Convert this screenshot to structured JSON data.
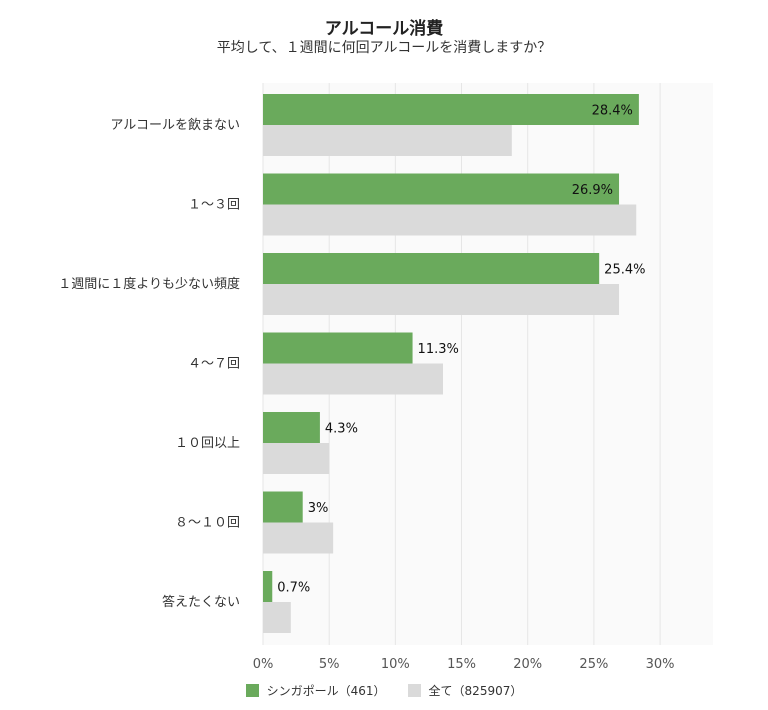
{
  "chart_data": {
    "type": "bar",
    "orientation": "horizontal",
    "title": "アルコール消費",
    "subtitle": "平均して、１週間に何回アルコールを消費しますか？",
    "categories": [
      "アルコールを飲まない",
      "１～３回",
      "１週間に１度よりも少ない頻度",
      "４～７回",
      "１０回以上",
      "８～１０回",
      "答えたくない"
    ],
    "series": [
      {
        "name": "シンガポール（461）",
        "color": "#6aaa5c",
        "values": [
          28.4,
          26.9,
          25.4,
          11.3,
          4.3,
          3,
          0.7
        ],
        "labels": [
          "28.4%",
          "26.9%",
          "25.4%",
          "11.3%",
          "4.3%",
          "3%",
          "0.7%"
        ]
      },
      {
        "name": "全て（825907）",
        "color": "#dadada",
        "values": [
          18.8,
          28.2,
          26.9,
          13.6,
          5.0,
          5.3,
          2.1
        ]
      }
    ],
    "xlim": [
      0,
      34
    ],
    "xticks": [
      0,
      5,
      10,
      15,
      20,
      25,
      30
    ],
    "xtick_labels": [
      "0%",
      "5%",
      "10%",
      "15%",
      "20%",
      "25%",
      "30%"
    ],
    "grid": true,
    "legend_position": "bottom"
  }
}
